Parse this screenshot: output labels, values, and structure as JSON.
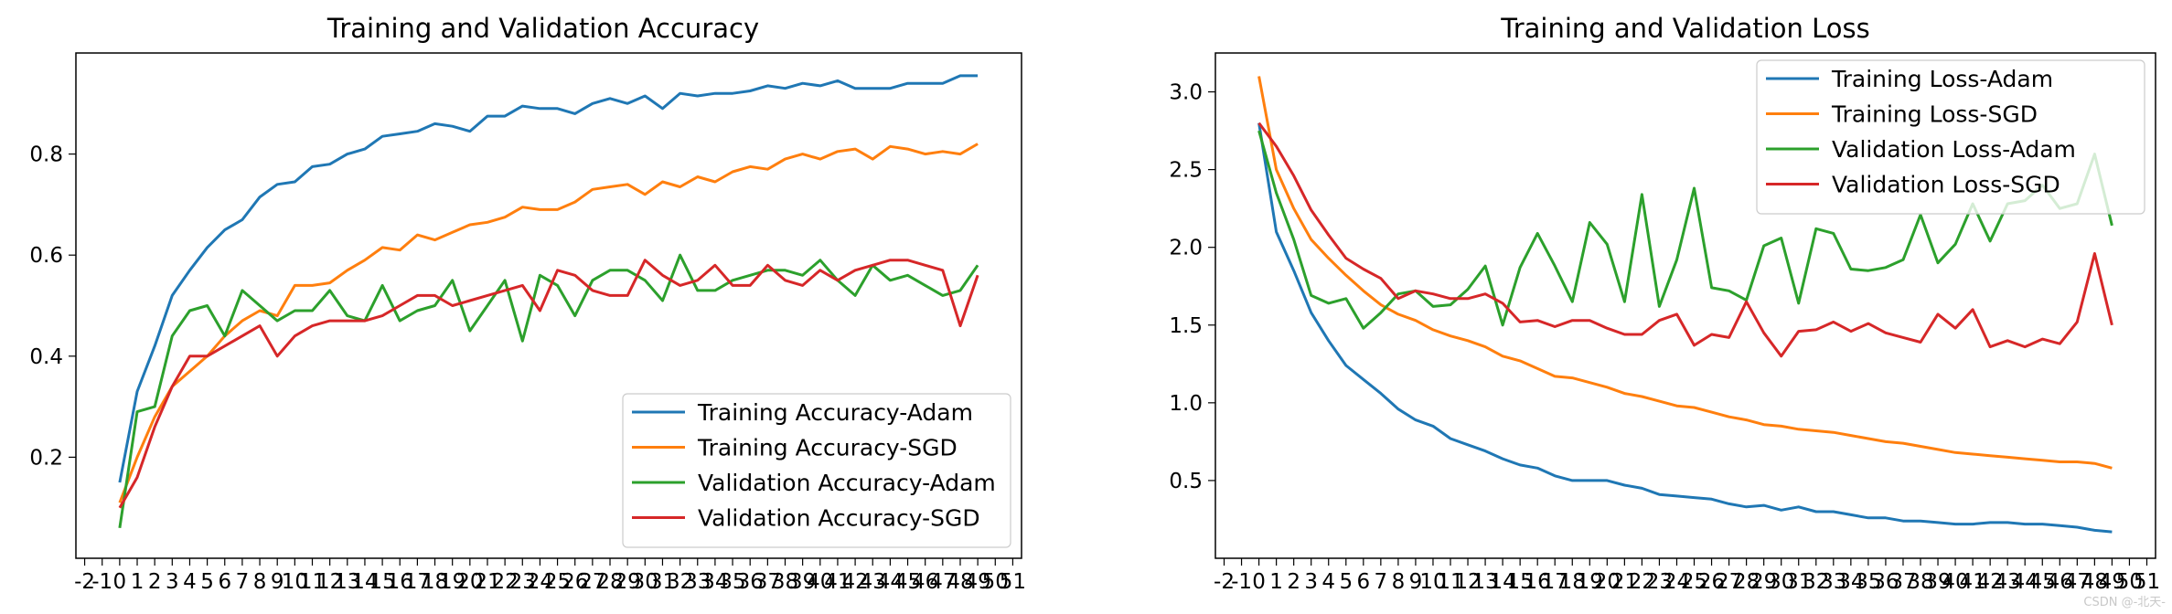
{
  "chart_data": [
    {
      "type": "line",
      "title": "Training and Validation Accuracy",
      "xlabel": "",
      "ylabel": "",
      "x": [
        0,
        1,
        2,
        3,
        4,
        5,
        6,
        7,
        8,
        9,
        10,
        11,
        12,
        13,
        14,
        15,
        16,
        17,
        18,
        19,
        20,
        21,
        22,
        23,
        24,
        25,
        26,
        27,
        28,
        29,
        30,
        31,
        32,
        33,
        34,
        35,
        36,
        37,
        38,
        39,
        40,
        41,
        42,
        43,
        44,
        45,
        46,
        47,
        48,
        49
      ],
      "xticks": [
        -2,
        -1,
        0,
        1,
        2,
        3,
        4,
        5,
        6,
        7,
        8,
        9,
        10,
        11,
        12,
        13,
        14,
        15,
        16,
        17,
        18,
        19,
        20,
        21,
        22,
        23,
        24,
        25,
        26,
        27,
        28,
        29,
        30,
        31,
        32,
        33,
        34,
        35,
        36,
        37,
        38,
        39,
        40,
        41,
        42,
        43,
        44,
        45,
        46,
        47,
        48,
        49,
        50,
        51
      ],
      "xlim": [
        -2.5,
        51.5
      ],
      "ylim": [
        0.0,
        1.0
      ],
      "yticks": [
        0.2,
        0.4,
        0.6,
        0.8
      ],
      "ytick_labels": [
        "0.2",
        "0.4",
        "0.6",
        "0.8"
      ],
      "legend": "lower-right",
      "series": [
        {
          "name": "Training Accuracy-Adam",
          "color": "#1f77b4",
          "values": [
            0.15,
            0.33,
            0.42,
            0.52,
            0.57,
            0.615,
            0.65,
            0.67,
            0.715,
            0.74,
            0.745,
            0.775,
            0.78,
            0.8,
            0.81,
            0.835,
            0.84,
            0.845,
            0.86,
            0.855,
            0.845,
            0.875,
            0.875,
            0.895,
            0.89,
            0.89,
            0.88,
            0.9,
            0.91,
            0.9,
            0.915,
            0.89,
            0.92,
            0.915,
            0.92,
            0.92,
            0.925,
            0.935,
            0.93,
            0.94,
            0.935,
            0.945,
            0.93,
            0.93,
            0.93,
            0.94,
            0.94,
            0.94,
            0.955,
            0.955
          ]
        },
        {
          "name": "Training Accuracy-SGD",
          "color": "#ff7f0e",
          "values": [
            0.11,
            0.2,
            0.28,
            0.34,
            0.37,
            0.4,
            0.44,
            0.47,
            0.49,
            0.48,
            0.54,
            0.54,
            0.545,
            0.57,
            0.59,
            0.615,
            0.61,
            0.64,
            0.63,
            0.645,
            0.66,
            0.665,
            0.675,
            0.695,
            0.69,
            0.69,
            0.705,
            0.73,
            0.735,
            0.74,
            0.72,
            0.745,
            0.735,
            0.755,
            0.745,
            0.765,
            0.775,
            0.77,
            0.79,
            0.8,
            0.79,
            0.805,
            0.81,
            0.79,
            0.815,
            0.81,
            0.8,
            0.805,
            0.8,
            0.82
          ]
        },
        {
          "name": "Validation Accuracy-Adam",
          "color": "#2ca02c",
          "values": [
            0.06,
            0.29,
            0.3,
            0.44,
            0.49,
            0.5,
            0.44,
            0.53,
            0.5,
            0.47,
            0.49,
            0.49,
            0.53,
            0.48,
            0.47,
            0.54,
            0.47,
            0.49,
            0.5,
            0.55,
            0.45,
            0.5,
            0.55,
            0.43,
            0.56,
            0.54,
            0.48,
            0.55,
            0.57,
            0.57,
            0.55,
            0.51,
            0.6,
            0.53,
            0.53,
            0.55,
            0.56,
            0.57,
            0.57,
            0.56,
            0.59,
            0.55,
            0.52,
            0.58,
            0.55,
            0.56,
            0.54,
            0.52,
            0.53,
            0.58
          ]
        },
        {
          "name": "Validation Accuracy-SGD",
          "color": "#d62728",
          "values": [
            0.1,
            0.16,
            0.26,
            0.34,
            0.4,
            0.4,
            0.42,
            0.44,
            0.46,
            0.4,
            0.44,
            0.46,
            0.47,
            0.47,
            0.47,
            0.48,
            0.5,
            0.52,
            0.52,
            0.5,
            0.51,
            0.52,
            0.53,
            0.54,
            0.49,
            0.57,
            0.56,
            0.53,
            0.52,
            0.52,
            0.59,
            0.56,
            0.54,
            0.55,
            0.58,
            0.54,
            0.54,
            0.58,
            0.55,
            0.54,
            0.57,
            0.55,
            0.57,
            0.58,
            0.59,
            0.59,
            0.58,
            0.57,
            0.46,
            0.56
          ]
        }
      ]
    },
    {
      "type": "line",
      "title": "Training and Validation Loss",
      "xlabel": "",
      "ylabel": "",
      "x": [
        0,
        1,
        2,
        3,
        4,
        5,
        6,
        7,
        8,
        9,
        10,
        11,
        12,
        13,
        14,
        15,
        16,
        17,
        18,
        19,
        20,
        21,
        22,
        23,
        24,
        25,
        26,
        27,
        28,
        29,
        30,
        31,
        32,
        33,
        34,
        35,
        36,
        37,
        38,
        39,
        40,
        41,
        42,
        43,
        44,
        45,
        46,
        47,
        48,
        49
      ],
      "xticks": [
        -2,
        -1,
        0,
        1,
        2,
        3,
        4,
        5,
        6,
        7,
        8,
        9,
        10,
        11,
        12,
        13,
        14,
        15,
        16,
        17,
        18,
        19,
        20,
        21,
        22,
        23,
        24,
        25,
        26,
        27,
        28,
        29,
        30,
        31,
        32,
        33,
        34,
        35,
        36,
        37,
        38,
        39,
        40,
        41,
        42,
        43,
        44,
        45,
        46,
        47,
        48,
        49,
        50,
        51
      ],
      "xlim": [
        -2.5,
        51.5
      ],
      "ylim": [
        0.0,
        3.25
      ],
      "yticks": [
        0.5,
        1.0,
        1.5,
        2.0,
        2.5,
        3.0
      ],
      "ytick_labels": [
        "0.5",
        "1.0",
        "1.5",
        "2.0",
        "2.5",
        "3.0"
      ],
      "legend": "upper-right",
      "series": [
        {
          "name": "Training Loss-Adam",
          "color": "#1f77b4",
          "values": [
            2.8,
            2.1,
            1.85,
            1.58,
            1.4,
            1.24,
            1.15,
            1.06,
            0.96,
            0.89,
            0.85,
            0.77,
            0.73,
            0.69,
            0.64,
            0.6,
            0.58,
            0.53,
            0.5,
            0.5,
            0.5,
            0.47,
            0.45,
            0.41,
            0.4,
            0.39,
            0.38,
            0.35,
            0.33,
            0.34,
            0.31,
            0.33,
            0.3,
            0.3,
            0.28,
            0.26,
            0.26,
            0.24,
            0.24,
            0.23,
            0.22,
            0.22,
            0.23,
            0.23,
            0.22,
            0.22,
            0.21,
            0.2,
            0.18,
            0.17
          ]
        },
        {
          "name": "Training Loss-SGD",
          "color": "#ff7f0e",
          "values": [
            3.1,
            2.5,
            2.25,
            2.05,
            1.93,
            1.82,
            1.72,
            1.63,
            1.57,
            1.53,
            1.47,
            1.43,
            1.4,
            1.36,
            1.3,
            1.27,
            1.22,
            1.17,
            1.16,
            1.13,
            1.1,
            1.06,
            1.04,
            1.01,
            0.98,
            0.97,
            0.94,
            0.91,
            0.89,
            0.86,
            0.85,
            0.83,
            0.82,
            0.81,
            0.79,
            0.77,
            0.75,
            0.74,
            0.72,
            0.7,
            0.68,
            0.67,
            0.66,
            0.65,
            0.64,
            0.63,
            0.62,
            0.62,
            0.61,
            0.58
          ]
        },
        {
          "name": "Validation Loss-Adam",
          "color": "#2ca02c",
          "values": [
            2.75,
            2.35,
            2.05,
            1.69,
            1.64,
            1.67,
            1.48,
            1.58,
            1.7,
            1.72,
            1.62,
            1.63,
            1.73,
            1.88,
            1.5,
            1.87,
            2.09,
            1.88,
            1.65,
            2.16,
            2.02,
            1.65,
            2.34,
            1.62,
            1.92,
            2.38,
            1.74,
            1.72,
            1.66,
            2.01,
            2.06,
            1.64,
            2.12,
            2.09,
            1.86,
            1.85,
            1.87,
            1.92,
            2.21,
            1.9,
            2.02,
            2.28,
            2.04,
            2.28,
            2.3,
            2.4,
            2.25,
            2.28,
            2.6,
            2.14
          ]
        },
        {
          "name": "Validation Loss-SGD",
          "color": "#d62728",
          "values": [
            2.8,
            2.65,
            2.46,
            2.24,
            2.08,
            1.93,
            1.86,
            1.8,
            1.67,
            1.72,
            1.7,
            1.67,
            1.67,
            1.7,
            1.64,
            1.52,
            1.53,
            1.49,
            1.53,
            1.53,
            1.48,
            1.44,
            1.44,
            1.53,
            1.57,
            1.37,
            1.44,
            1.42,
            1.65,
            1.45,
            1.3,
            1.46,
            1.47,
            1.52,
            1.46,
            1.51,
            1.45,
            1.42,
            1.39,
            1.57,
            1.48,
            1.6,
            1.36,
            1.4,
            1.36,
            1.41,
            1.38,
            1.52,
            1.96,
            1.5
          ]
        }
      ]
    }
  ],
  "watermark": "CSDN @-北天-"
}
